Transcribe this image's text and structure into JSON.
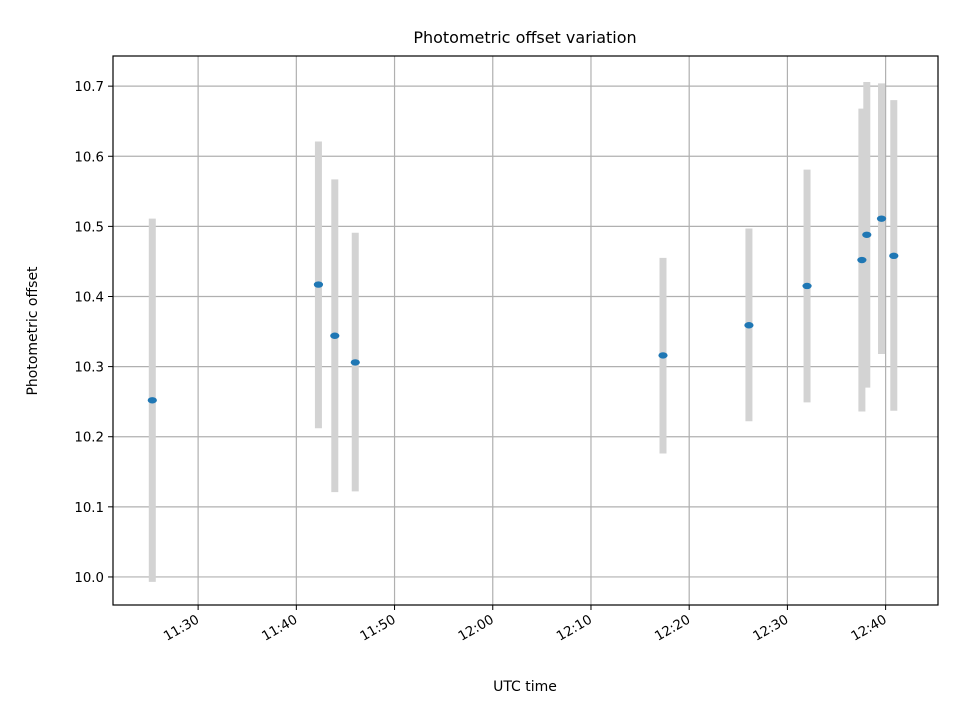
{
  "chart_data": {
    "type": "scatter",
    "title": "Photometric offset variation",
    "xlabel": "UTC time",
    "ylabel": "Photometric offset",
    "xlim": [
      "11:21:20",
      "12:45:20"
    ],
    "ylim": [
      9.96,
      10.743
    ],
    "x_ticks": [
      "11:30",
      "11:40",
      "11:50",
      "12:00",
      "12:10",
      "12:20",
      "12:30",
      "12:40"
    ],
    "y_ticks": [
      "10.0",
      "10.1",
      "10.2",
      "10.3",
      "10.4",
      "10.5",
      "10.6",
      "10.7"
    ],
    "grid": true,
    "marker_color": "#1f77b4",
    "errorbar_color": "#d3d3d3",
    "points": [
      {
        "t": "11:25:20",
        "y": 10.252,
        "lo": 9.993,
        "hi": 10.511
      },
      {
        "t": "11:42:15",
        "y": 10.417,
        "lo": 10.212,
        "hi": 10.621
      },
      {
        "t": "11:43:55",
        "y": 10.344,
        "lo": 10.121,
        "hi": 10.567
      },
      {
        "t": "11:46:00",
        "y": 10.306,
        "lo": 10.122,
        "hi": 10.491
      },
      {
        "t": "12:17:20",
        "y": 10.316,
        "lo": 10.176,
        "hi": 10.455
      },
      {
        "t": "12:26:05",
        "y": 10.359,
        "lo": 10.222,
        "hi": 10.497
      },
      {
        "t": "12:32:00",
        "y": 10.415,
        "lo": 10.249,
        "hi": 10.581
      },
      {
        "t": "12:37:35",
        "y": 10.452,
        "lo": 10.236,
        "hi": 10.668
      },
      {
        "t": "12:38:05",
        "y": 10.488,
        "lo": 10.27,
        "hi": 10.706
      },
      {
        "t": "12:39:35",
        "y": 10.511,
        "lo": 10.318,
        "hi": 10.704
      },
      {
        "t": "12:40:50",
        "y": 10.458,
        "lo": 10.237,
        "hi": 10.68
      }
    ]
  }
}
